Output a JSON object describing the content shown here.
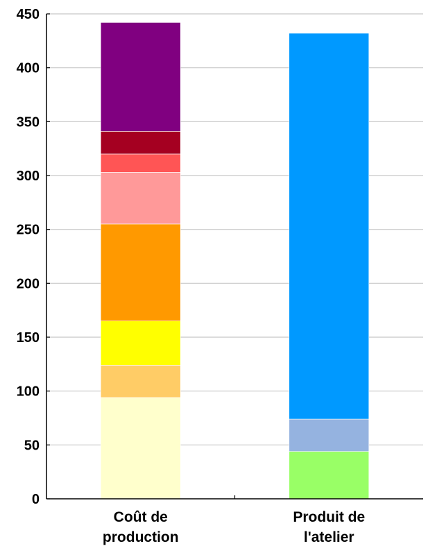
{
  "chart_data": {
    "type": "bar",
    "stacked": true,
    "title": "",
    "xlabel": "",
    "ylabel": "",
    "ylim": [
      0,
      450
    ],
    "yticks": [
      0,
      50,
      100,
      150,
      200,
      250,
      300,
      350,
      400,
      450
    ],
    "grid": true,
    "categories": [
      [
        "Coût de",
        "production"
      ],
      [
        "Produit de",
        "l'atelier"
      ]
    ],
    "stacks": [
      {
        "category_index": 0,
        "segments": [
          {
            "value": 94,
            "color": "#FFFFCC"
          },
          {
            "value": 30,
            "color": "#FFCC66"
          },
          {
            "value": 41,
            "color": "#FFFF00"
          },
          {
            "value": 90,
            "color": "#FF9900"
          },
          {
            "value": 48,
            "color": "#FF9999"
          },
          {
            "value": 17,
            "color": "#FF5555"
          },
          {
            "value": 21,
            "color": "#A50021"
          },
          {
            "value": 101,
            "color": "#800080"
          }
        ]
      },
      {
        "category_index": 1,
        "segments": [
          {
            "value": 44,
            "color": "#99FF66"
          },
          {
            "value": 30,
            "color": "#95B3E0"
          },
          {
            "value": 358,
            "color": "#0099FF"
          }
        ]
      }
    ]
  }
}
